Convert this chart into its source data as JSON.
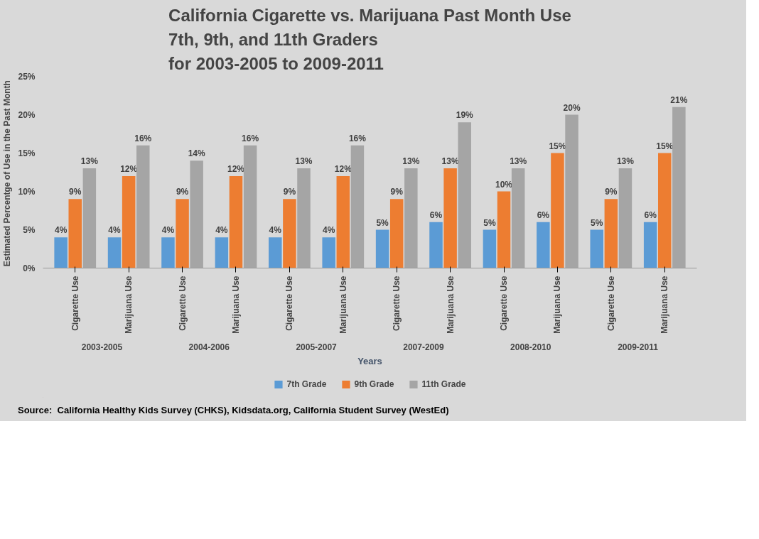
{
  "chart_data": {
    "type": "bar",
    "title": "California Cigarette vs. Marijuana Past Month Use\n7th, 9th, and 11th Graders\nfor 2003-2005 to 2009-2011",
    "xlabel": "Years",
    "ylabel": "Estimated Percentge of  Use in the Past Month",
    "categories": [
      "Cigarette Use",
      "Marijuana Use",
      "Cigarette Use",
      "Marijuana Use",
      "Cigarette Use",
      "Marijuana Use",
      "Cigarette Use",
      "Marijuana Use",
      "Cigarette Use",
      "Marijuana Use",
      "Cigarette Use",
      "Marijuana Use"
    ],
    "series": [
      {
        "name": "7th Grade",
        "color": "#5b9bd5",
        "values": [
          4,
          4,
          4,
          4,
          4,
          4,
          5,
          6,
          5,
          6,
          5,
          6
        ],
        "value_labels": [
          "4%",
          "4%",
          "4%",
          "4%",
          "4%",
          "4%",
          "5%",
          "6%",
          "5%",
          "6%",
          "5%",
          "6%"
        ]
      },
      {
        "name": "9th Grade",
        "color": "#ed7d31",
        "values": [
          9,
          12,
          9,
          12,
          9,
          12,
          9,
          13,
          10,
          15,
          9,
          15
        ],
        "value_labels": [
          "9%",
          "12%",
          "9%",
          "12%",
          "9%",
          "12%",
          "9%",
          "13%",
          "10%",
          "15%",
          "9%",
          "15%"
        ]
      },
      {
        "name": "11th Grade",
        "color": "#a5a5a5",
        "values": [
          13,
          16,
          14,
          16,
          13,
          16,
          13,
          19,
          13,
          20,
          13,
          21
        ],
        "value_labels": [
          "13%",
          "16%",
          "14%",
          "16%",
          "13%",
          "16%",
          "13%",
          "19%",
          "13%",
          "20%",
          "13%",
          "21%"
        ]
      }
    ],
    "ylim": [
      0,
      25
    ],
    "yticks": [
      {
        "value": 0,
        "label": "0%"
      },
      {
        "value": 5,
        "label": "5%"
      },
      {
        "value": 10,
        "label": "10%"
      },
      {
        "value": 15,
        "label": "15%"
      },
      {
        "value": 20,
        "label": "20%"
      },
      {
        "value": 25,
        "label": "25%"
      }
    ],
    "grid": false,
    "legend": "bottom",
    "annotations": [
      "2003-2005",
      "2004-2006",
      "2005-2007",
      "2007-2009",
      "2008-2010",
      "2009-2011",
      "Source:  California Healthy Kids Survey (CHKS), Kidsdata.org, California Student Survey (WestEd)"
    ]
  }
}
